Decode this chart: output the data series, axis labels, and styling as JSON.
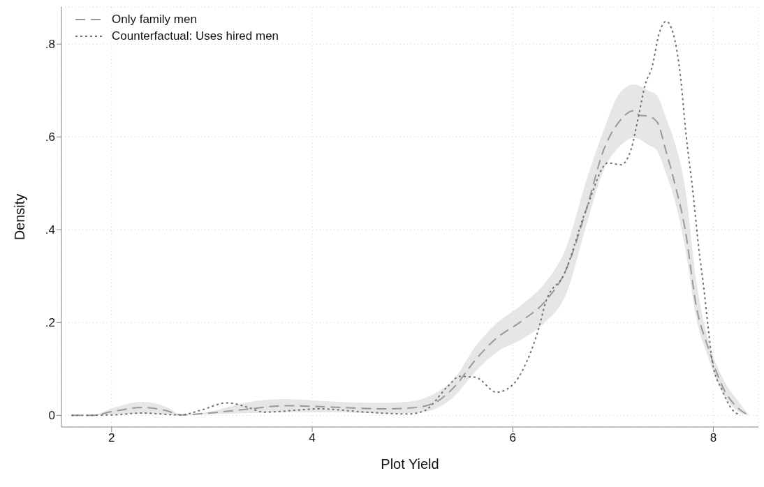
{
  "chart_data": {
    "type": "line",
    "xlabel": "Plot Yield",
    "ylabel": "Density",
    "xlim": [
      1.5,
      8.45
    ],
    "ylim": [
      -0.025,
      0.88
    ],
    "xticks": [
      2,
      4,
      6,
      8
    ],
    "yticks": [
      0,
      {
        "value": 0.2,
        "label": ".2"
      },
      {
        "value": 0.4,
        "label": ".4"
      },
      {
        "value": 0.6,
        "label": ".6"
      },
      {
        "value": 0.8,
        "label": ".8"
      }
    ],
    "grid": true,
    "legend": "top left",
    "marker": "none",
    "series": [
      {
        "name": "Only family men",
        "color": "#999999",
        "line_style": "dashed",
        "x": [
          1.6,
          1.81,
          2.0,
          2.31,
          2.55,
          2.69,
          2.92,
          3.38,
          3.73,
          4.19,
          4.7,
          4.98,
          5.2,
          5.42,
          5.63,
          5.82,
          6.1,
          6.32,
          6.53,
          6.74,
          6.9,
          7.07,
          7.21,
          7.26,
          7.35,
          7.44,
          7.53,
          7.62,
          7.72,
          7.83,
          7.95,
          8.09,
          8.25,
          8.36
        ],
        "values": [
          0,
          0,
          0.008,
          0.017,
          0.01,
          0.001,
          0.004,
          0.014,
          0.021,
          0.018,
          0.014,
          0.016,
          0.025,
          0.062,
          0.12,
          0.163,
          0.205,
          0.245,
          0.313,
          0.448,
          0.568,
          0.635,
          0.657,
          0.647,
          0.645,
          0.632,
          0.568,
          0.496,
          0.4,
          0.236,
          0.145,
          0.063,
          0.015,
          0
        ],
        "lower": [
          0,
          0,
          0.002,
          0.004,
          0.002,
          0,
          0.002,
          0.005,
          0.007,
          0.007,
          0.004,
          0.005,
          0.012,
          0.042,
          0.095,
          0.133,
          0.165,
          0.2,
          0.26,
          0.414,
          0.525,
          0.58,
          0.598,
          0.595,
          0.583,
          0.57,
          0.52,
          0.46,
          0.36,
          0.21,
          0.125,
          0.05,
          0.008,
          0
        ],
        "upper": [
          0,
          0.001,
          0.015,
          0.029,
          0.018,
          0.002,
          0.006,
          0.029,
          0.035,
          0.03,
          0.027,
          0.03,
          0.045,
          0.08,
          0.149,
          0.195,
          0.24,
          0.285,
          0.36,
          0.51,
          0.61,
          0.695,
          0.713,
          0.71,
          0.7,
          0.689,
          0.64,
          0.585,
          0.49,
          0.29,
          0.163,
          0.082,
          0.03,
          0
        ]
      },
      {
        "name": "Counterfactual: Uses hired men",
        "color": "#707070",
        "line_style": "dotted",
        "x": [
          1.6,
          2.0,
          2.3,
          2.69,
          2.9,
          3.15,
          3.35,
          3.52,
          4.08,
          4.54,
          4.96,
          5.12,
          5.35,
          5.47,
          5.63,
          5.84,
          5.98,
          6.14,
          6.26,
          6.33,
          6.51,
          6.74,
          6.95,
          7.08,
          7.18,
          7.25,
          7.32,
          7.39,
          7.46,
          7.53,
          7.6,
          7.67,
          7.73,
          7.79,
          7.86,
          7.9,
          7.95,
          7.99,
          8.09,
          8.18,
          8.27
        ],
        "values": [
          0,
          0.001,
          0.005,
          0.001,
          0.012,
          0.027,
          0.018,
          0.007,
          0.014,
          0.007,
          0.003,
          0.01,
          0.062,
          0.084,
          0.082,
          0.05,
          0.062,
          0.116,
          0.188,
          0.245,
          0.303,
          0.448,
          0.544,
          0.54,
          0.573,
          0.64,
          0.712,
          0.751,
          0.823,
          0.849,
          0.823,
          0.736,
          0.602,
          0.495,
          0.351,
          0.284,
          0.188,
          0.116,
          0.053,
          0.015,
          0
        ]
      }
    ]
  }
}
